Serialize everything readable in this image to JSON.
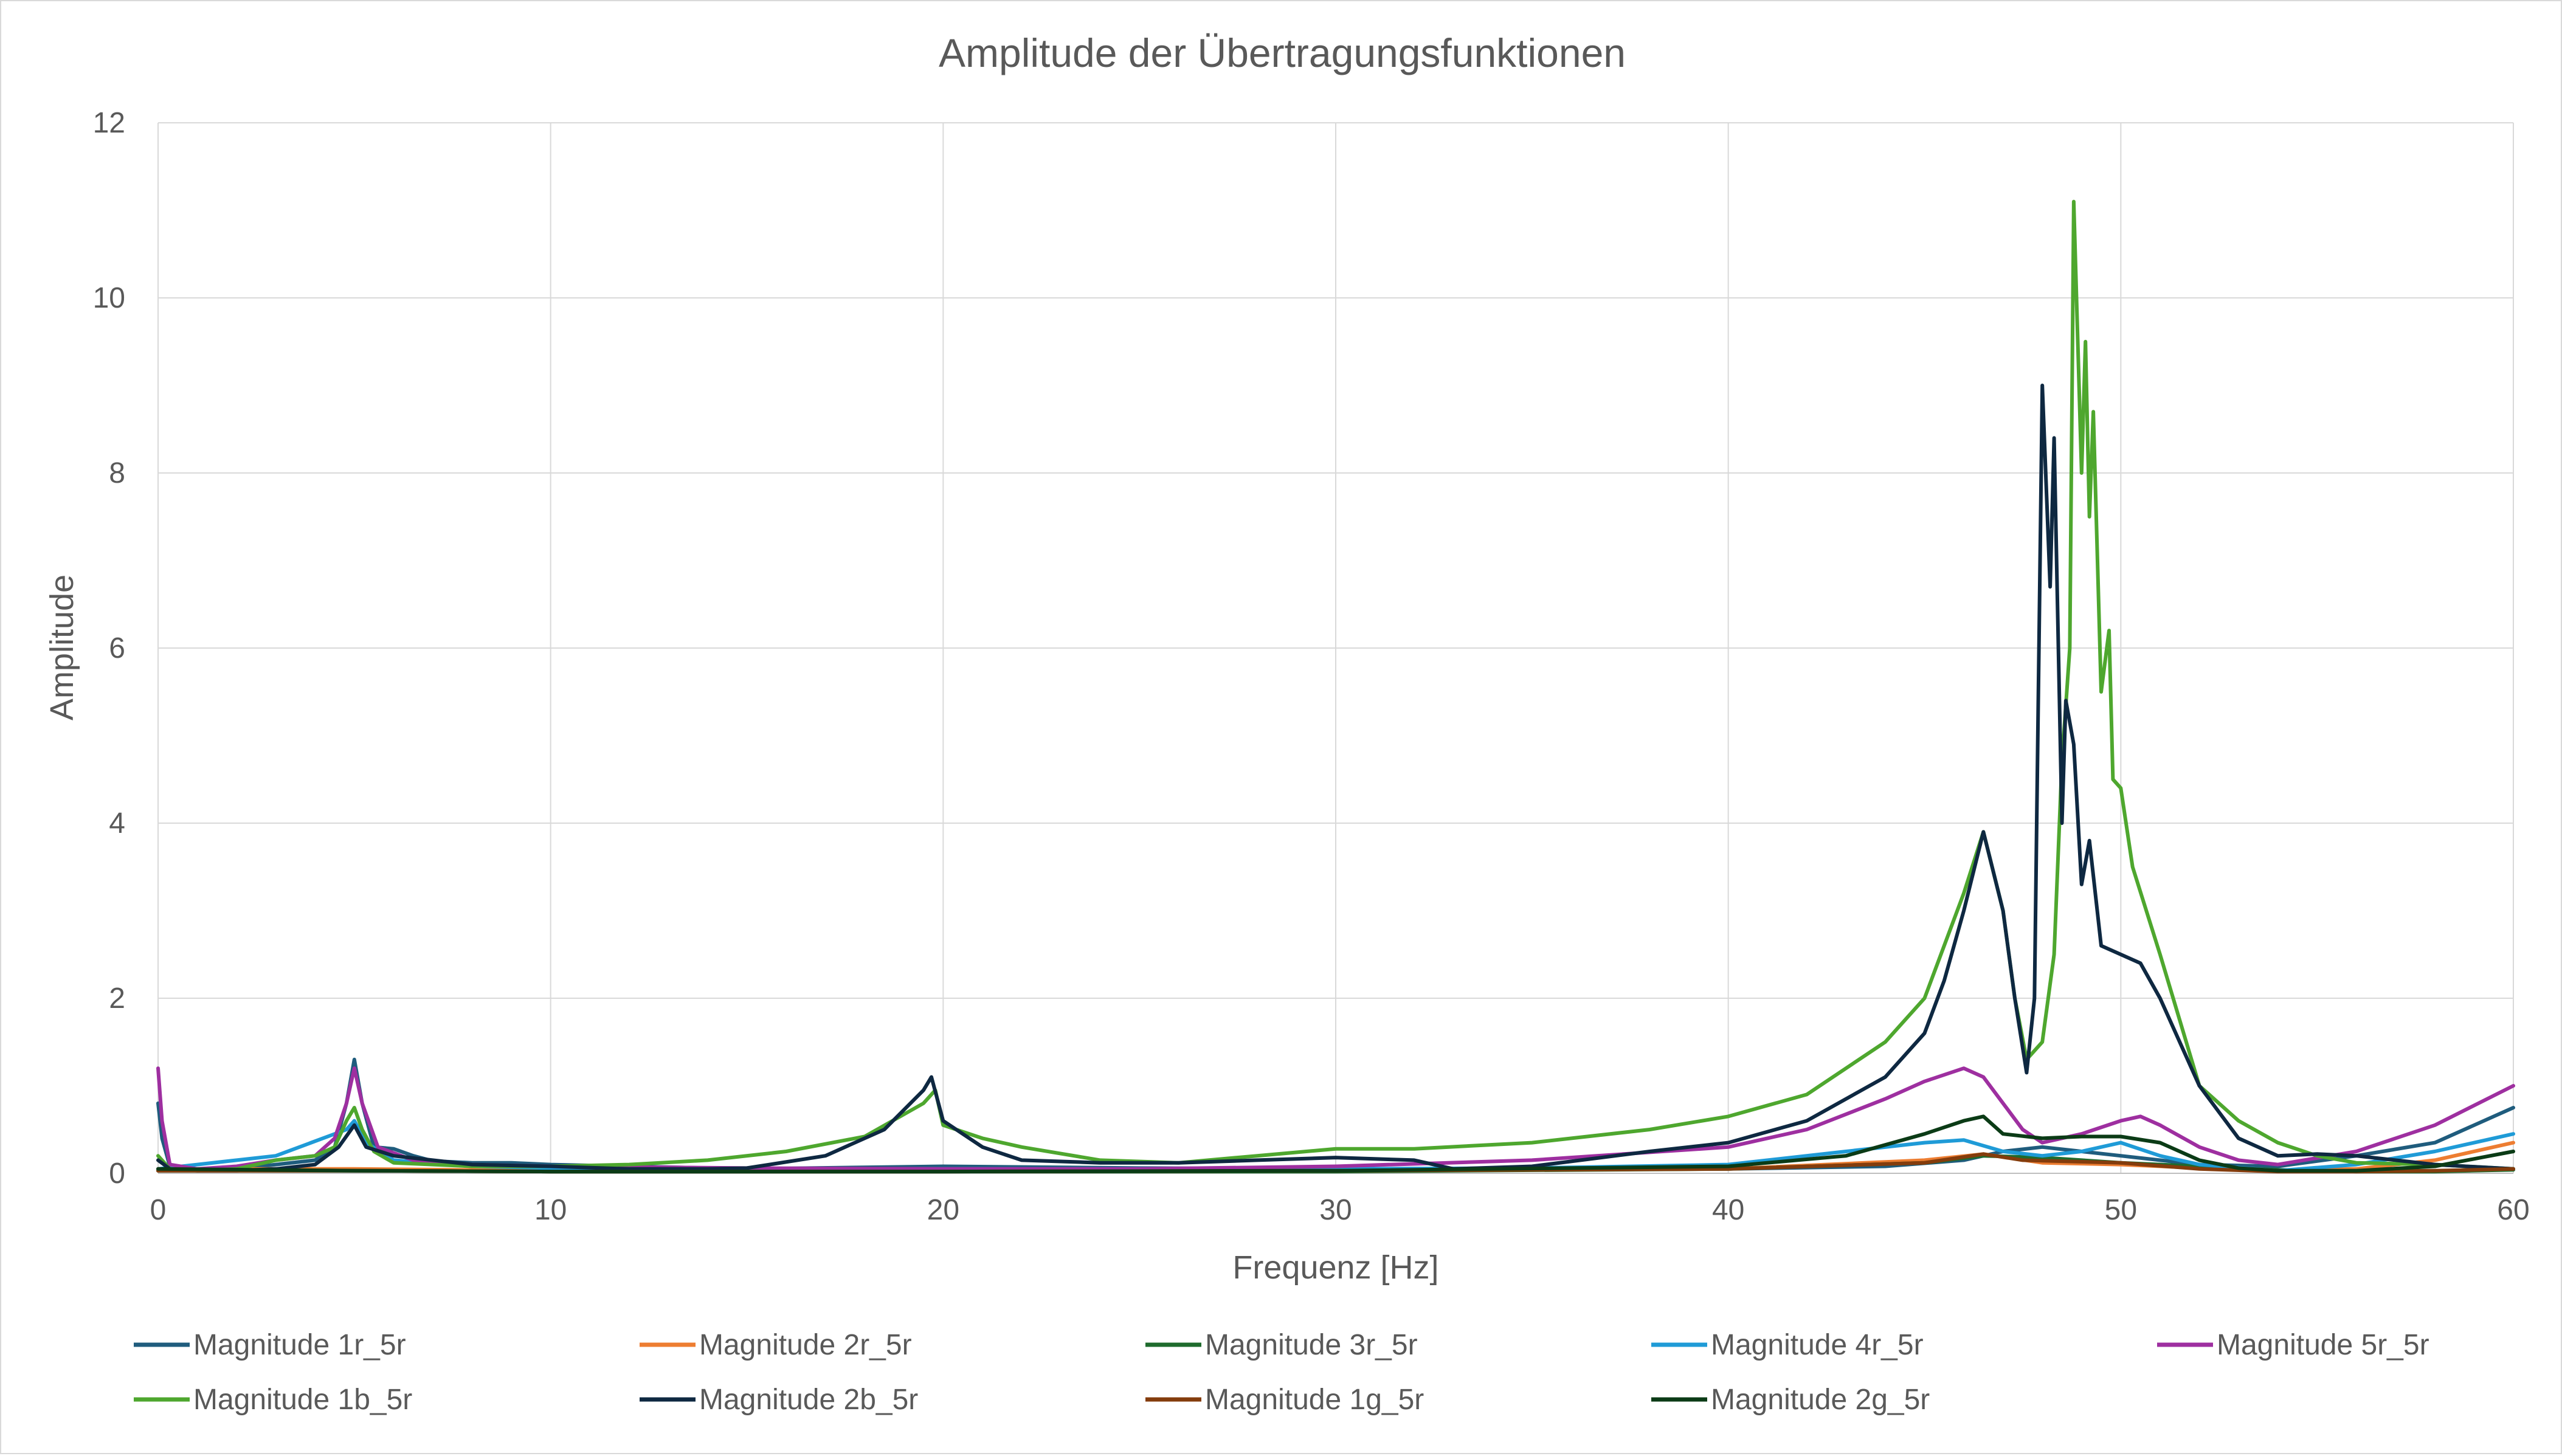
{
  "chart_data": {
    "type": "line",
    "title": "Amplitude der Übertragungsfunktionen",
    "xlabel": "Frequenz [Hz]",
    "ylabel": "Amplitude",
    "xlim": [
      0,
      60
    ],
    "ylim": [
      0,
      12
    ],
    "xticks": [
      0,
      10,
      20,
      30,
      40,
      50,
      60
    ],
    "yticks": [
      0,
      2,
      4,
      6,
      8,
      10,
      12
    ],
    "x_tick_labels": [
      "0",
      "10",
      "20",
      "30",
      "40",
      "50",
      "60"
    ],
    "y_tick_labels": [
      "0",
      "2",
      "4",
      "6",
      "8",
      "10",
      "12"
    ],
    "grid": true,
    "legend_position": "bottom",
    "series": [
      {
        "name": "Magnitude 1r_5r",
        "color": "#1f5c7d",
        "points": [
          [
            0,
            0.8
          ],
          [
            0.1,
            0.4
          ],
          [
            0.3,
            0.08
          ],
          [
            1,
            0.03
          ],
          [
            2,
            0.05
          ],
          [
            3,
            0.1
          ],
          [
            4,
            0.15
          ],
          [
            4.5,
            0.3
          ],
          [
            4.8,
            0.8
          ],
          [
            5.0,
            1.3
          ],
          [
            5.2,
            0.8
          ],
          [
            5.5,
            0.3
          ],
          [
            6,
            0.28
          ],
          [
            6.5,
            0.2
          ],
          [
            7,
            0.14
          ],
          [
            8,
            0.12
          ],
          [
            9,
            0.12
          ],
          [
            10,
            0.1
          ],
          [
            12,
            0.08
          ],
          [
            15,
            0.05
          ],
          [
            20,
            0.08
          ],
          [
            25,
            0.06
          ],
          [
            30,
            0.05
          ],
          [
            35,
            0.05
          ],
          [
            40,
            0.05
          ],
          [
            44,
            0.08
          ],
          [
            46,
            0.15
          ],
          [
            47,
            0.25
          ],
          [
            48,
            0.3
          ],
          [
            50,
            0.2
          ],
          [
            52,
            0.1
          ],
          [
            54,
            0.08
          ],
          [
            56,
            0.2
          ],
          [
            58,
            0.35
          ],
          [
            60,
            0.75
          ]
        ]
      },
      {
        "name": "Magnitude 2r_5r",
        "color": "#ed7d31",
        "points": [
          [
            0,
            0.05
          ],
          [
            5,
            0.05
          ],
          [
            10,
            0.03
          ],
          [
            20,
            0.03
          ],
          [
            30,
            0.03
          ],
          [
            40,
            0.05
          ],
          [
            45,
            0.15
          ],
          [
            46.5,
            0.22
          ],
          [
            48,
            0.12
          ],
          [
            50,
            0.1
          ],
          [
            52,
            0.06
          ],
          [
            54,
            0.03
          ],
          [
            56,
            0.05
          ],
          [
            58,
            0.15
          ],
          [
            60,
            0.35
          ]
        ]
      },
      {
        "name": "Magnitude 3r_5r",
        "color": "#1e6b2d",
        "points": [
          [
            0,
            0.03
          ],
          [
            5,
            0.03
          ],
          [
            10,
            0.02
          ],
          [
            20,
            0.02
          ],
          [
            30,
            0.02
          ],
          [
            40,
            0.05
          ],
          [
            45,
            0.12
          ],
          [
            46.5,
            0.2
          ],
          [
            48,
            0.18
          ],
          [
            50,
            0.12
          ],
          [
            52,
            0.08
          ],
          [
            54,
            0.04
          ],
          [
            56,
            0.02
          ],
          [
            58,
            0.02
          ],
          [
            60,
            0.04
          ]
        ]
      },
      {
        "name": "Magnitude 4r_5r",
        "color": "#1f9bd7",
        "points": [
          [
            0,
            0.05
          ],
          [
            3,
            0.2
          ],
          [
            4.8,
            0.5
          ],
          [
            5.0,
            0.6
          ],
          [
            5.3,
            0.35
          ],
          [
            6,
            0.15
          ],
          [
            8,
            0.08
          ],
          [
            10,
            0.06
          ],
          [
            15,
            0.05
          ],
          [
            20,
            0.05
          ],
          [
            30,
            0.05
          ],
          [
            35,
            0.06
          ],
          [
            40,
            0.1
          ],
          [
            43,
            0.25
          ],
          [
            45,
            0.35
          ],
          [
            46,
            0.38
          ],
          [
            47,
            0.25
          ],
          [
            48,
            0.2
          ],
          [
            49,
            0.25
          ],
          [
            50,
            0.35
          ],
          [
            51,
            0.2
          ],
          [
            52,
            0.1
          ],
          [
            54,
            0.03
          ],
          [
            56,
            0.1
          ],
          [
            58,
            0.25
          ],
          [
            60,
            0.45
          ]
        ]
      },
      {
        "name": "Magnitude 5r_5r",
        "color": "#9e2fa0",
        "points": [
          [
            0,
            1.2
          ],
          [
            0.1,
            0.6
          ],
          [
            0.3,
            0.1
          ],
          [
            1,
            0.05
          ],
          [
            2,
            0.08
          ],
          [
            3,
            0.15
          ],
          [
            4,
            0.2
          ],
          [
            4.5,
            0.4
          ],
          [
            4.8,
            0.8
          ],
          [
            5.0,
            1.2
          ],
          [
            5.2,
            0.8
          ],
          [
            5.6,
            0.3
          ],
          [
            6.5,
            0.15
          ],
          [
            8,
            0.1
          ],
          [
            10,
            0.08
          ],
          [
            15,
            0.06
          ],
          [
            20,
            0.05
          ],
          [
            25,
            0.05
          ],
          [
            30,
            0.08
          ],
          [
            35,
            0.15
          ],
          [
            40,
            0.3
          ],
          [
            42,
            0.5
          ],
          [
            44,
            0.85
          ],
          [
            45,
            1.05
          ],
          [
            46,
            1.2
          ],
          [
            46.5,
            1.1
          ],
          [
            47,
            0.8
          ],
          [
            47.5,
            0.5
          ],
          [
            48,
            0.35
          ],
          [
            49,
            0.45
          ],
          [
            50,
            0.6
          ],
          [
            50.5,
            0.65
          ],
          [
            51,
            0.55
          ],
          [
            52,
            0.3
          ],
          [
            53,
            0.15
          ],
          [
            54,
            0.1
          ],
          [
            56,
            0.25
          ],
          [
            58,
            0.55
          ],
          [
            60,
            1.0
          ]
        ]
      },
      {
        "name": "Magnitude 1b_5r",
        "color": "#4ea72e",
        "points": [
          [
            0,
            0.2
          ],
          [
            0.3,
            0.05
          ],
          [
            1,
            0.03
          ],
          [
            2,
            0.05
          ],
          [
            3,
            0.15
          ],
          [
            4,
            0.2
          ],
          [
            4.5,
            0.3
          ],
          [
            4.8,
            0.6
          ],
          [
            5.0,
            0.75
          ],
          [
            5.2,
            0.5
          ],
          [
            5.5,
            0.25
          ],
          [
            6,
            0.12
          ],
          [
            8,
            0.08
          ],
          [
            10,
            0.08
          ],
          [
            12,
            0.1
          ],
          [
            14,
            0.15
          ],
          [
            16,
            0.25
          ],
          [
            18,
            0.42
          ],
          [
            19.5,
            0.8
          ],
          [
            19.8,
            0.95
          ],
          [
            20,
            0.55
          ],
          [
            21,
            0.4
          ],
          [
            22,
            0.3
          ],
          [
            24,
            0.15
          ],
          [
            26,
            0.12
          ],
          [
            28,
            0.2
          ],
          [
            30,
            0.28
          ],
          [
            32,
            0.28
          ],
          [
            35,
            0.35
          ],
          [
            38,
            0.5
          ],
          [
            40,
            0.65
          ],
          [
            42,
            0.9
          ],
          [
            44,
            1.5
          ],
          [
            45,
            2.0
          ],
          [
            46,
            3.2
          ],
          [
            46.5,
            3.9
          ],
          [
            47,
            3.0
          ],
          [
            47.3,
            2.0
          ],
          [
            47.6,
            1.3
          ],
          [
            48,
            1.5
          ],
          [
            48.3,
            2.5
          ],
          [
            48.5,
            4.7
          ],
          [
            48.7,
            6.0
          ],
          [
            48.8,
            11.1
          ],
          [
            49.0,
            8.0
          ],
          [
            49.1,
            9.5
          ],
          [
            49.2,
            7.5
          ],
          [
            49.3,
            8.7
          ],
          [
            49.5,
            5.5
          ],
          [
            49.7,
            6.2
          ],
          [
            49.8,
            4.5
          ],
          [
            50,
            4.4
          ],
          [
            50.3,
            3.5
          ],
          [
            51,
            2.5
          ],
          [
            52,
            1.0
          ],
          [
            53,
            0.6
          ],
          [
            54,
            0.35
          ],
          [
            55,
            0.2
          ],
          [
            56,
            0.12
          ],
          [
            58,
            0.1
          ],
          [
            60,
            0.05
          ]
        ]
      },
      {
        "name": "Magnitude 2b_5r",
        "color": "#0e2841",
        "points": [
          [
            0,
            0.15
          ],
          [
            0.3,
            0.05
          ],
          [
            1,
            0.03
          ],
          [
            2,
            0.03
          ],
          [
            3,
            0.05
          ],
          [
            4,
            0.1
          ],
          [
            4.6,
            0.3
          ],
          [
            5.0,
            0.55
          ],
          [
            5.3,
            0.3
          ],
          [
            6,
            0.2
          ],
          [
            8,
            0.1
          ],
          [
            10,
            0.08
          ],
          [
            12,
            0.05
          ],
          [
            14,
            0.05
          ],
          [
            15,
            0.06
          ],
          [
            17,
            0.2
          ],
          [
            18.5,
            0.5
          ],
          [
            19.5,
            0.95
          ],
          [
            19.7,
            1.1
          ],
          [
            20,
            0.6
          ],
          [
            21,
            0.3
          ],
          [
            22,
            0.15
          ],
          [
            24,
            0.12
          ],
          [
            26,
            0.12
          ],
          [
            28,
            0.15
          ],
          [
            30,
            0.18
          ],
          [
            32,
            0.15
          ],
          [
            33,
            0.05
          ],
          [
            35,
            0.08
          ],
          [
            38,
            0.25
          ],
          [
            40,
            0.35
          ],
          [
            42,
            0.6
          ],
          [
            44,
            1.1
          ],
          [
            45,
            1.6
          ],
          [
            45.5,
            2.2
          ],
          [
            46,
            3.0
          ],
          [
            46.5,
            3.9
          ],
          [
            47,
            3.0
          ],
          [
            47.3,
            2.0
          ],
          [
            47.6,
            1.15
          ],
          [
            47.8,
            2.0
          ],
          [
            48.0,
            9.0
          ],
          [
            48.2,
            6.7
          ],
          [
            48.3,
            8.4
          ],
          [
            48.5,
            4.0
          ],
          [
            48.6,
            5.4
          ],
          [
            48.8,
            4.9
          ],
          [
            49.0,
            3.3
          ],
          [
            49.2,
            3.8
          ],
          [
            49.5,
            2.6
          ],
          [
            50,
            2.5
          ],
          [
            50.5,
            2.4
          ],
          [
            51,
            2.0
          ],
          [
            52,
            1.0
          ],
          [
            53,
            0.4
          ],
          [
            54,
            0.2
          ],
          [
            55,
            0.22
          ],
          [
            56,
            0.2
          ],
          [
            58,
            0.1
          ],
          [
            60,
            0.05
          ]
        ]
      },
      {
        "name": "Magnitude 1g_5r",
        "color": "#843c0c",
        "points": [
          [
            0,
            0.03
          ],
          [
            5,
            0.03
          ],
          [
            10,
            0.02
          ],
          [
            20,
            0.02
          ],
          [
            30,
            0.03
          ],
          [
            40,
            0.05
          ],
          [
            45,
            0.12
          ],
          [
            46.5,
            0.22
          ],
          [
            47.5,
            0.15
          ],
          [
            50,
            0.12
          ],
          [
            52,
            0.05
          ],
          [
            54,
            0.02
          ],
          [
            56,
            0.02
          ],
          [
            58,
            0.03
          ],
          [
            60,
            0.05
          ]
        ]
      },
      {
        "name": "Magnitude 2g_5r",
        "color": "#0b3b16",
        "points": [
          [
            0,
            0.05
          ],
          [
            5,
            0.03
          ],
          [
            10,
            0.02
          ],
          [
            20,
            0.02
          ],
          [
            30,
            0.03
          ],
          [
            40,
            0.08
          ],
          [
            43,
            0.2
          ],
          [
            45,
            0.45
          ],
          [
            46,
            0.6
          ],
          [
            46.5,
            0.65
          ],
          [
            47,
            0.45
          ],
          [
            48,
            0.4
          ],
          [
            49,
            0.42
          ],
          [
            50,
            0.42
          ],
          [
            51,
            0.35
          ],
          [
            52,
            0.15
          ],
          [
            53,
            0.06
          ],
          [
            54,
            0.03
          ],
          [
            56,
            0.03
          ],
          [
            58,
            0.08
          ],
          [
            60,
            0.25
          ]
        ]
      }
    ]
  }
}
